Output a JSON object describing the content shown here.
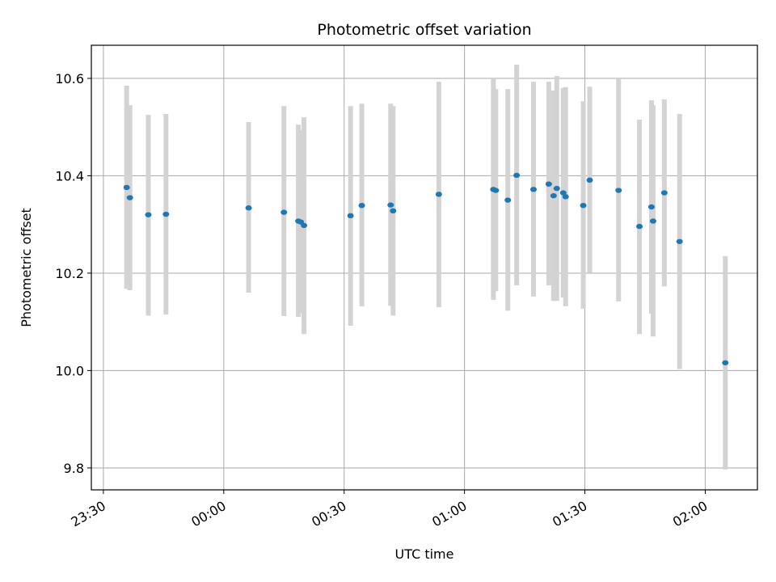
{
  "chart_data": {
    "type": "scatter",
    "title": "Photometric offset variation",
    "xlabel": "UTC time",
    "ylabel": "Photometric offset",
    "x_axis": "time",
    "xlim": [
      "23:27",
      "02:13"
    ],
    "ylim": [
      9.755,
      10.668
    ],
    "xticks": [
      "23:30",
      "00:00",
      "00:30",
      "01:00",
      "01:30",
      "02:00"
    ],
    "yticks": [
      9.8,
      10.0,
      10.2,
      10.4,
      10.6
    ],
    "ytick_labels": [
      "9.8",
      "10.0",
      "10.2",
      "10.4",
      "10.6"
    ],
    "grid": true,
    "colors": {
      "point": "#1f77b4",
      "errorbar": "#d3d3d3",
      "grid": "#b0b0b0"
    },
    "series": [
      {
        "points": [
          {
            "t": "23:35:48",
            "y": 10.376,
            "lo": 10.168,
            "hi": 10.585
          },
          {
            "t": "23:36:36",
            "y": 10.355,
            "lo": 10.165,
            "hi": 10.545
          },
          {
            "t": "23:41:12",
            "y": 10.32,
            "lo": 10.113,
            "hi": 10.525
          },
          {
            "t": "23:45:36",
            "y": 10.321,
            "lo": 10.115,
            "hi": 10.527
          },
          {
            "t": "00:06:12",
            "y": 10.334,
            "lo": 10.16,
            "hi": 10.51
          },
          {
            "t": "00:15:00",
            "y": 10.325,
            "lo": 10.112,
            "hi": 10.543
          },
          {
            "t": "00:18:36",
            "y": 10.307,
            "lo": 10.11,
            "hi": 10.505
          },
          {
            "t": "00:19:12",
            "y": 10.305,
            "lo": 10.118,
            "hi": 10.493
          },
          {
            "t": "00:20:00",
            "y": 10.298,
            "lo": 10.075,
            "hi": 10.52
          },
          {
            "t": "00:31:36",
            "y": 10.318,
            "lo": 10.092,
            "hi": 10.543
          },
          {
            "t": "00:34:24",
            "y": 10.339,
            "lo": 10.132,
            "hi": 10.548
          },
          {
            "t": "00:41:36",
            "y": 10.34,
            "lo": 10.133,
            "hi": 10.548
          },
          {
            "t": "00:42:12",
            "y": 10.328,
            "lo": 10.113,
            "hi": 10.543
          },
          {
            "t": "00:53:36",
            "y": 10.362,
            "lo": 10.13,
            "hi": 10.593
          },
          {
            "t": "01:07:12",
            "y": 10.372,
            "lo": 10.145,
            "hi": 10.6
          },
          {
            "t": "01:07:48",
            "y": 10.37,
            "lo": 10.163,
            "hi": 10.578
          },
          {
            "t": "01:10:48",
            "y": 10.35,
            "lo": 10.123,
            "hi": 10.578
          },
          {
            "t": "01:13:00",
            "y": 10.401,
            "lo": 10.175,
            "hi": 10.628
          },
          {
            "t": "01:17:12",
            "y": 10.372,
            "lo": 10.152,
            "hi": 10.593
          },
          {
            "t": "01:21:00",
            "y": 10.383,
            "lo": 10.175,
            "hi": 10.593
          },
          {
            "t": "01:22:12",
            "y": 10.359,
            "lo": 10.143,
            "hi": 10.575
          },
          {
            "t": "01:23:00",
            "y": 10.374,
            "lo": 10.143,
            "hi": 10.605
          },
          {
            "t": "01:24:36",
            "y": 10.365,
            "lo": 10.15,
            "hi": 10.58
          },
          {
            "t": "01:25:12",
            "y": 10.357,
            "lo": 10.132,
            "hi": 10.582
          },
          {
            "t": "01:29:36",
            "y": 10.339,
            "lo": 10.127,
            "hi": 10.553
          },
          {
            "t": "01:31:12",
            "y": 10.391,
            "lo": 10.2,
            "hi": 10.583
          },
          {
            "t": "01:38:24",
            "y": 10.37,
            "lo": 10.142,
            "hi": 10.6
          },
          {
            "t": "01:43:36",
            "y": 10.296,
            "lo": 10.075,
            "hi": 10.515
          },
          {
            "t": "01:46:36",
            "y": 10.336,
            "lo": 10.117,
            "hi": 10.555
          },
          {
            "t": "01:47:00",
            "y": 10.307,
            "lo": 10.07,
            "hi": 10.545
          },
          {
            "t": "01:49:48",
            "y": 10.365,
            "lo": 10.173,
            "hi": 10.557
          },
          {
            "t": "01:53:36",
            "y": 10.265,
            "lo": 10.003,
            "hi": 10.527
          },
          {
            "t": "02:05:00",
            "y": 10.016,
            "lo": 9.797,
            "hi": 10.235
          }
        ]
      }
    ]
  }
}
